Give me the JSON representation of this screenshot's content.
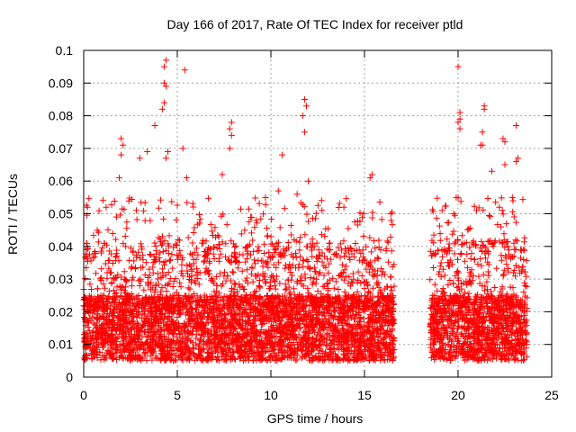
{
  "chart_data": {
    "type": "scatter",
    "title": "Day 166 of 2017, Rate Of TEC Index for receiver ptld",
    "xlabel": "GPS time / hours",
    "ylabel": "ROTI / TECUs",
    "xlim": [
      0,
      25
    ],
    "ylim": [
      0,
      0.1
    ],
    "xticks": [
      0,
      5,
      10,
      15,
      20,
      25
    ],
    "yticks": [
      0,
      0.01,
      0.02,
      0.03,
      0.04,
      0.05,
      0.06,
      0.07,
      0.08,
      0.09,
      0.1
    ],
    "xtick_labels": [
      "0",
      "5",
      "10",
      "15",
      "20",
      "25"
    ],
    "ytick_labels": [
      "0",
      "0.01",
      "0.02",
      "0.03",
      "0.04",
      "0.05",
      "0.06",
      "0.07",
      "0.08",
      "0.09",
      "0.1"
    ],
    "grid": true,
    "marker": "+",
    "series": [
      {
        "name": "ROTI",
        "color": "#ff0000",
        "data_gap_hours": [
          16.6,
          18.5
        ],
        "time_ranges": [
          [
            0,
            16.6
          ],
          [
            18.5,
            23.7
          ]
        ],
        "typical_band": [
          0.005,
          0.025
        ],
        "highlight_points": [
          {
            "x": 4.4,
            "y": 0.097
          },
          {
            "x": 4.3,
            "y": 0.095
          },
          {
            "x": 4.3,
            "y": 0.09
          },
          {
            "x": 4.4,
            "y": 0.089
          },
          {
            "x": 4.3,
            "y": 0.084
          },
          {
            "x": 4.2,
            "y": 0.082
          },
          {
            "x": 5.4,
            "y": 0.094
          },
          {
            "x": 5.3,
            "y": 0.07
          },
          {
            "x": 7.9,
            "y": 0.078
          },
          {
            "x": 7.8,
            "y": 0.076
          },
          {
            "x": 7.9,
            "y": 0.074
          },
          {
            "x": 7.8,
            "y": 0.07
          },
          {
            "x": 11.8,
            "y": 0.085
          },
          {
            "x": 11.9,
            "y": 0.083
          },
          {
            "x": 11.7,
            "y": 0.08
          },
          {
            "x": 11.8,
            "y": 0.075
          },
          {
            "x": 10.6,
            "y": 0.068
          },
          {
            "x": 2.0,
            "y": 0.073
          },
          {
            "x": 2.1,
            "y": 0.071
          },
          {
            "x": 2.0,
            "y": 0.068
          },
          {
            "x": 3.0,
            "y": 0.067
          },
          {
            "x": 3.4,
            "y": 0.069
          },
          {
            "x": 3.8,
            "y": 0.077
          },
          {
            "x": 20.0,
            "y": 0.095
          },
          {
            "x": 20.1,
            "y": 0.081
          },
          {
            "x": 20.1,
            "y": 0.079
          },
          {
            "x": 20.0,
            "y": 0.078
          },
          {
            "x": 20.1,
            "y": 0.076
          },
          {
            "x": 21.4,
            "y": 0.083
          },
          {
            "x": 21.4,
            "y": 0.082
          },
          {
            "x": 21.3,
            "y": 0.075
          },
          {
            "x": 21.2,
            "y": 0.071
          },
          {
            "x": 21.3,
            "y": 0.071
          },
          {
            "x": 23.1,
            "y": 0.077
          },
          {
            "x": 22.4,
            "y": 0.073
          },
          {
            "x": 22.5,
            "y": 0.072
          },
          {
            "x": 23.2,
            "y": 0.067
          },
          {
            "x": 23.1,
            "y": 0.066
          },
          {
            "x": 22.5,
            "y": 0.065
          },
          {
            "x": 15.4,
            "y": 0.062
          },
          {
            "x": 15.3,
            "y": 0.061
          },
          {
            "x": 12.0,
            "y": 0.06
          },
          {
            "x": 7.4,
            "y": 0.062
          },
          {
            "x": 4.5,
            "y": 0.069
          },
          {
            "x": 4.4,
            "y": 0.067
          },
          {
            "x": 0.2,
            "y": 0.052
          },
          {
            "x": 1.2,
            "y": 0.052
          },
          {
            "x": 1.9,
            "y": 0.061
          },
          {
            "x": 5.5,
            "y": 0.061
          },
          {
            "x": 10.4,
            "y": 0.057
          },
          {
            "x": 11.4,
            "y": 0.056
          },
          {
            "x": 13.9,
            "y": 0.052
          },
          {
            "x": 16.4,
            "y": 0.05
          },
          {
            "x": 19.9,
            "y": 0.055
          },
          {
            "x": 22.9,
            "y": 0.055
          },
          {
            "x": 21.8,
            "y": 0.063
          },
          {
            "x": 22.2,
            "y": 0.052
          }
        ]
      }
    ]
  }
}
